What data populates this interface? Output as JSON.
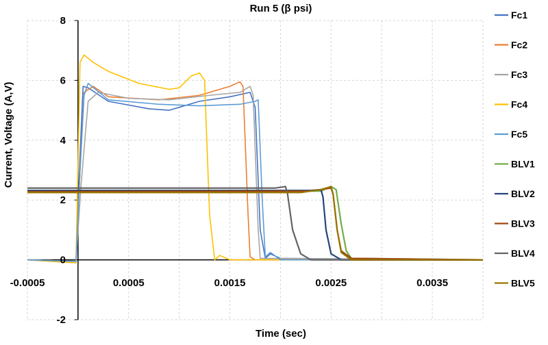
{
  "chart_data": {
    "type": "line",
    "title": "Run 5 (β psi)",
    "xlabel": "Time (sec)",
    "ylabel": "Current, Voltage (A,V)",
    "xlim": [
      -0.0005,
      0.004
    ],
    "ylim": [
      -2,
      8
    ],
    "x_tick_values": [
      -0.0005,
      0.0005,
      0.0015,
      0.0025,
      0.0035
    ],
    "x_tick_labels": [
      "-0.0005",
      "0.0005",
      "0.0015",
      "0.0025",
      "0.0035"
    ],
    "x_grid_values": [
      -0.0005,
      0,
      0.0005,
      0.001,
      0.0015,
      0.002,
      0.0025,
      0.003,
      0.0035,
      0.004
    ],
    "y_tick_values": [
      -2,
      0,
      2,
      4,
      6,
      8
    ],
    "y_tick_labels": [
      "-2",
      "0",
      "2",
      "4",
      "6",
      "8"
    ],
    "grid": true,
    "legend_position": "right",
    "series": [
      {
        "name": "Fc1",
        "color": "#4472C4",
        "points": [
          [
            -0.0005,
            0
          ],
          [
            -2e-05,
            -0.1
          ],
          [
            2e-05,
            3.5
          ],
          [
            5e-05,
            5.8
          ],
          [
            0.0001,
            5.75
          ],
          [
            0.0003,
            5.3
          ],
          [
            0.0007,
            5.05
          ],
          [
            0.0009,
            5.0
          ],
          [
            0.0012,
            5.3
          ],
          [
            0.0015,
            5.45
          ],
          [
            0.0017,
            5.6
          ],
          [
            0.00175,
            5.1
          ],
          [
            0.0018,
            1
          ],
          [
            0.00185,
            0.05
          ],
          [
            0.0019,
            0.2
          ],
          [
            0.002,
            0.05
          ],
          [
            0.004,
            0
          ]
        ]
      },
      {
        "name": "Fc2",
        "color": "#ED7D31",
        "points": [
          [
            -0.0005,
            0
          ],
          [
            -2e-05,
            -0.05
          ],
          [
            2e-05,
            3.0
          ],
          [
            6e-05,
            5.6
          ],
          [
            0.00015,
            5.8
          ],
          [
            0.0003,
            5.45
          ],
          [
            0.0008,
            5.35
          ],
          [
            0.0012,
            5.5
          ],
          [
            0.0015,
            5.8
          ],
          [
            0.0016,
            5.95
          ],
          [
            0.00163,
            5.8
          ],
          [
            0.00168,
            1.5
          ],
          [
            0.0017,
            0.1
          ],
          [
            0.00175,
            0
          ],
          [
            0.004,
            0
          ]
        ]
      },
      {
        "name": "Fc3",
        "color": "#A5A5A5",
        "points": [
          [
            -0.0005,
            0
          ],
          [
            -2e-05,
            -0.05
          ],
          [
            3e-05,
            2.5
          ],
          [
            0.0001,
            5.3
          ],
          [
            0.0002,
            5.6
          ],
          [
            0.0005,
            5.4
          ],
          [
            0.0009,
            5.35
          ],
          [
            0.0013,
            5.5
          ],
          [
            0.0016,
            5.6
          ],
          [
            0.0017,
            5.8
          ],
          [
            0.00173,
            5.5
          ],
          [
            0.00178,
            1
          ],
          [
            0.0018,
            0.05
          ],
          [
            0.004,
            0
          ]
        ]
      },
      {
        "name": "Fc4",
        "color": "#FFC000",
        "points": [
          [
            -0.0005,
            0
          ],
          [
            -2e-05,
            -0.1
          ],
          [
            2e-05,
            6.6
          ],
          [
            6e-05,
            6.85
          ],
          [
            0.00015,
            6.6
          ],
          [
            0.0003,
            6.3
          ],
          [
            0.0006,
            5.9
          ],
          [
            0.0009,
            5.7
          ],
          [
            0.001,
            5.75
          ],
          [
            0.00112,
            6.15
          ],
          [
            0.0012,
            6.25
          ],
          [
            0.00125,
            6.0
          ],
          [
            0.0013,
            1.5
          ],
          [
            0.00135,
            0
          ],
          [
            0.0014,
            0.15
          ],
          [
            0.0015,
            0
          ],
          [
            0.004,
            0
          ]
        ]
      },
      {
        "name": "Fc5",
        "color": "#5B9BD5",
        "points": [
          [
            -0.0005,
            0
          ],
          [
            -2e-05,
            -0.05
          ],
          [
            2e-05,
            3.0
          ],
          [
            6e-05,
            5.5
          ],
          [
            0.0001,
            5.9
          ],
          [
            0.0003,
            5.35
          ],
          [
            0.0008,
            5.2
          ],
          [
            0.0012,
            5.15
          ],
          [
            0.0016,
            5.2
          ],
          [
            0.00175,
            5.3
          ],
          [
            0.00178,
            5.35
          ],
          [
            0.00182,
            2
          ],
          [
            0.00185,
            0.1
          ],
          [
            0.0019,
            0.25
          ],
          [
            0.002,
            0
          ],
          [
            0.004,
            0
          ]
        ]
      },
      {
        "name": "BLV1",
        "color": "#70AD47",
        "points": [
          [
            -0.0005,
            2.3
          ],
          [
            0.0021,
            2.3
          ],
          [
            0.0024,
            2.3
          ],
          [
            0.0025,
            2.45
          ],
          [
            0.00255,
            2.35
          ],
          [
            0.0026,
            1.2
          ],
          [
            0.00265,
            0.3
          ],
          [
            0.0027,
            0.05
          ],
          [
            0.004,
            0
          ]
        ]
      },
      {
        "name": "BLV2",
        "color": "#264478",
        "points": [
          [
            -0.0005,
            2.32
          ],
          [
            0.0023,
            2.32
          ],
          [
            0.0024,
            2.35
          ],
          [
            0.00242,
            2.1
          ],
          [
            0.00245,
            1.0
          ],
          [
            0.0025,
            0.2
          ],
          [
            0.0026,
            0
          ],
          [
            0.004,
            0
          ]
        ]
      },
      {
        "name": "BLV3",
        "color": "#9E480E",
        "points": [
          [
            -0.0005,
            2.28
          ],
          [
            0.0023,
            2.3
          ],
          [
            0.0025,
            2.4
          ],
          [
            0.00252,
            2.2
          ],
          [
            0.00256,
            1.0
          ],
          [
            0.0026,
            0.3
          ],
          [
            0.0027,
            0.05
          ],
          [
            0.004,
            0
          ]
        ]
      },
      {
        "name": "BLV4",
        "color": "#636363",
        "points": [
          [
            -0.0005,
            2.4
          ],
          [
            0.00195,
            2.4
          ],
          [
            0.00205,
            2.45
          ],
          [
            0.00207,
            2.2
          ],
          [
            0.00212,
            1.0
          ],
          [
            0.0022,
            0.2
          ],
          [
            0.0023,
            0
          ],
          [
            0.004,
            0
          ]
        ]
      },
      {
        "name": "BLV5",
        "color": "#997300",
        "points": [
          [
            -0.0005,
            2.25
          ],
          [
            0.0022,
            2.25
          ],
          [
            0.0024,
            2.35
          ],
          [
            0.0025,
            2.45
          ],
          [
            0.00252,
            2.2
          ],
          [
            0.00256,
            1.0
          ],
          [
            0.0026,
            0.25
          ],
          [
            0.0027,
            0
          ],
          [
            0.004,
            0
          ]
        ]
      }
    ]
  }
}
